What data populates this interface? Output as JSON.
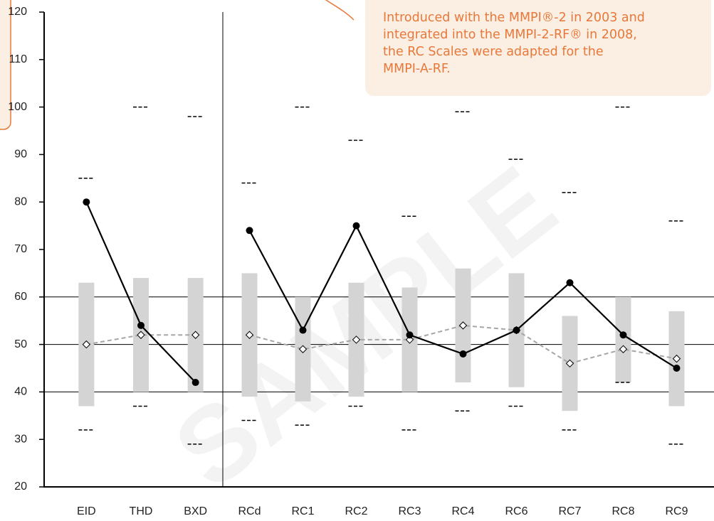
{
  "chart_data": [
    {
      "type": "line",
      "categories": [
        "EID",
        "THD",
        "BXD"
      ],
      "series": [
        {
          "color": "#000000",
          "marker": "circle",
          "values": [
            80,
            54,
            42
          ]
        },
        {
          "color": "#a6a6a6",
          "dashed": true,
          "marker": "diamond",
          "values": [
            50,
            52,
            52
          ]
        }
      ],
      "range_low": [
        37,
        40,
        40
      ],
      "range_high": [
        63,
        64,
        64
      ],
      "range_color": "#d4d4d4",
      "upper": [
        85,
        100,
        98
      ],
      "lower": [
        32,
        37,
        29
      ],
      "ylim": [
        20,
        120
      ],
      "yticks": [
        20,
        30,
        40,
        50,
        60,
        70,
        80,
        90,
        100,
        110,
        120
      ],
      "grid_lines": [
        40,
        50,
        60
      ]
    },
    {
      "type": "line",
      "categories": [
        "RCd",
        "RC1",
        "RC2",
        "RC3",
        "RC4",
        "RC6",
        "RC7",
        "RC8",
        "RC9"
      ],
      "series": [
        {
          "color": "#000000",
          "marker": "circle",
          "values": [
            74,
            53,
            75,
            52,
            48,
            53,
            63,
            52,
            45
          ]
        },
        {
          "color": "#a6a6a6",
          "dashed": true,
          "marker": "diamond",
          "values": [
            52,
            49,
            51,
            51,
            54,
            53,
            46,
            49,
            47
          ]
        }
      ],
      "range_low": [
        39,
        38,
        39,
        40,
        42,
        41,
        36,
        42,
        37
      ],
      "range_high": [
        65,
        60,
        63,
        62,
        66,
        65,
        56,
        60,
        57
      ],
      "range_color": "#d4d4d4",
      "upper": [
        84,
        100,
        93,
        77,
        99,
        89,
        82,
        100,
        76
      ],
      "lower": [
        34,
        33,
        37,
        32,
        36,
        37,
        32,
        42,
        29
      ],
      "ylim": [
        20,
        120
      ],
      "grid_lines": [
        40,
        50,
        60
      ]
    }
  ],
  "annotation": {
    "lines": [
      "Introduced with the MMPI®-2 in 2003 and",
      "integrated into the MMPI-2-RF® in 2008,",
      "the RC Scales were adapted for the",
      "MMPI-A-RF."
    ]
  },
  "watermark": "SAMPLE"
}
